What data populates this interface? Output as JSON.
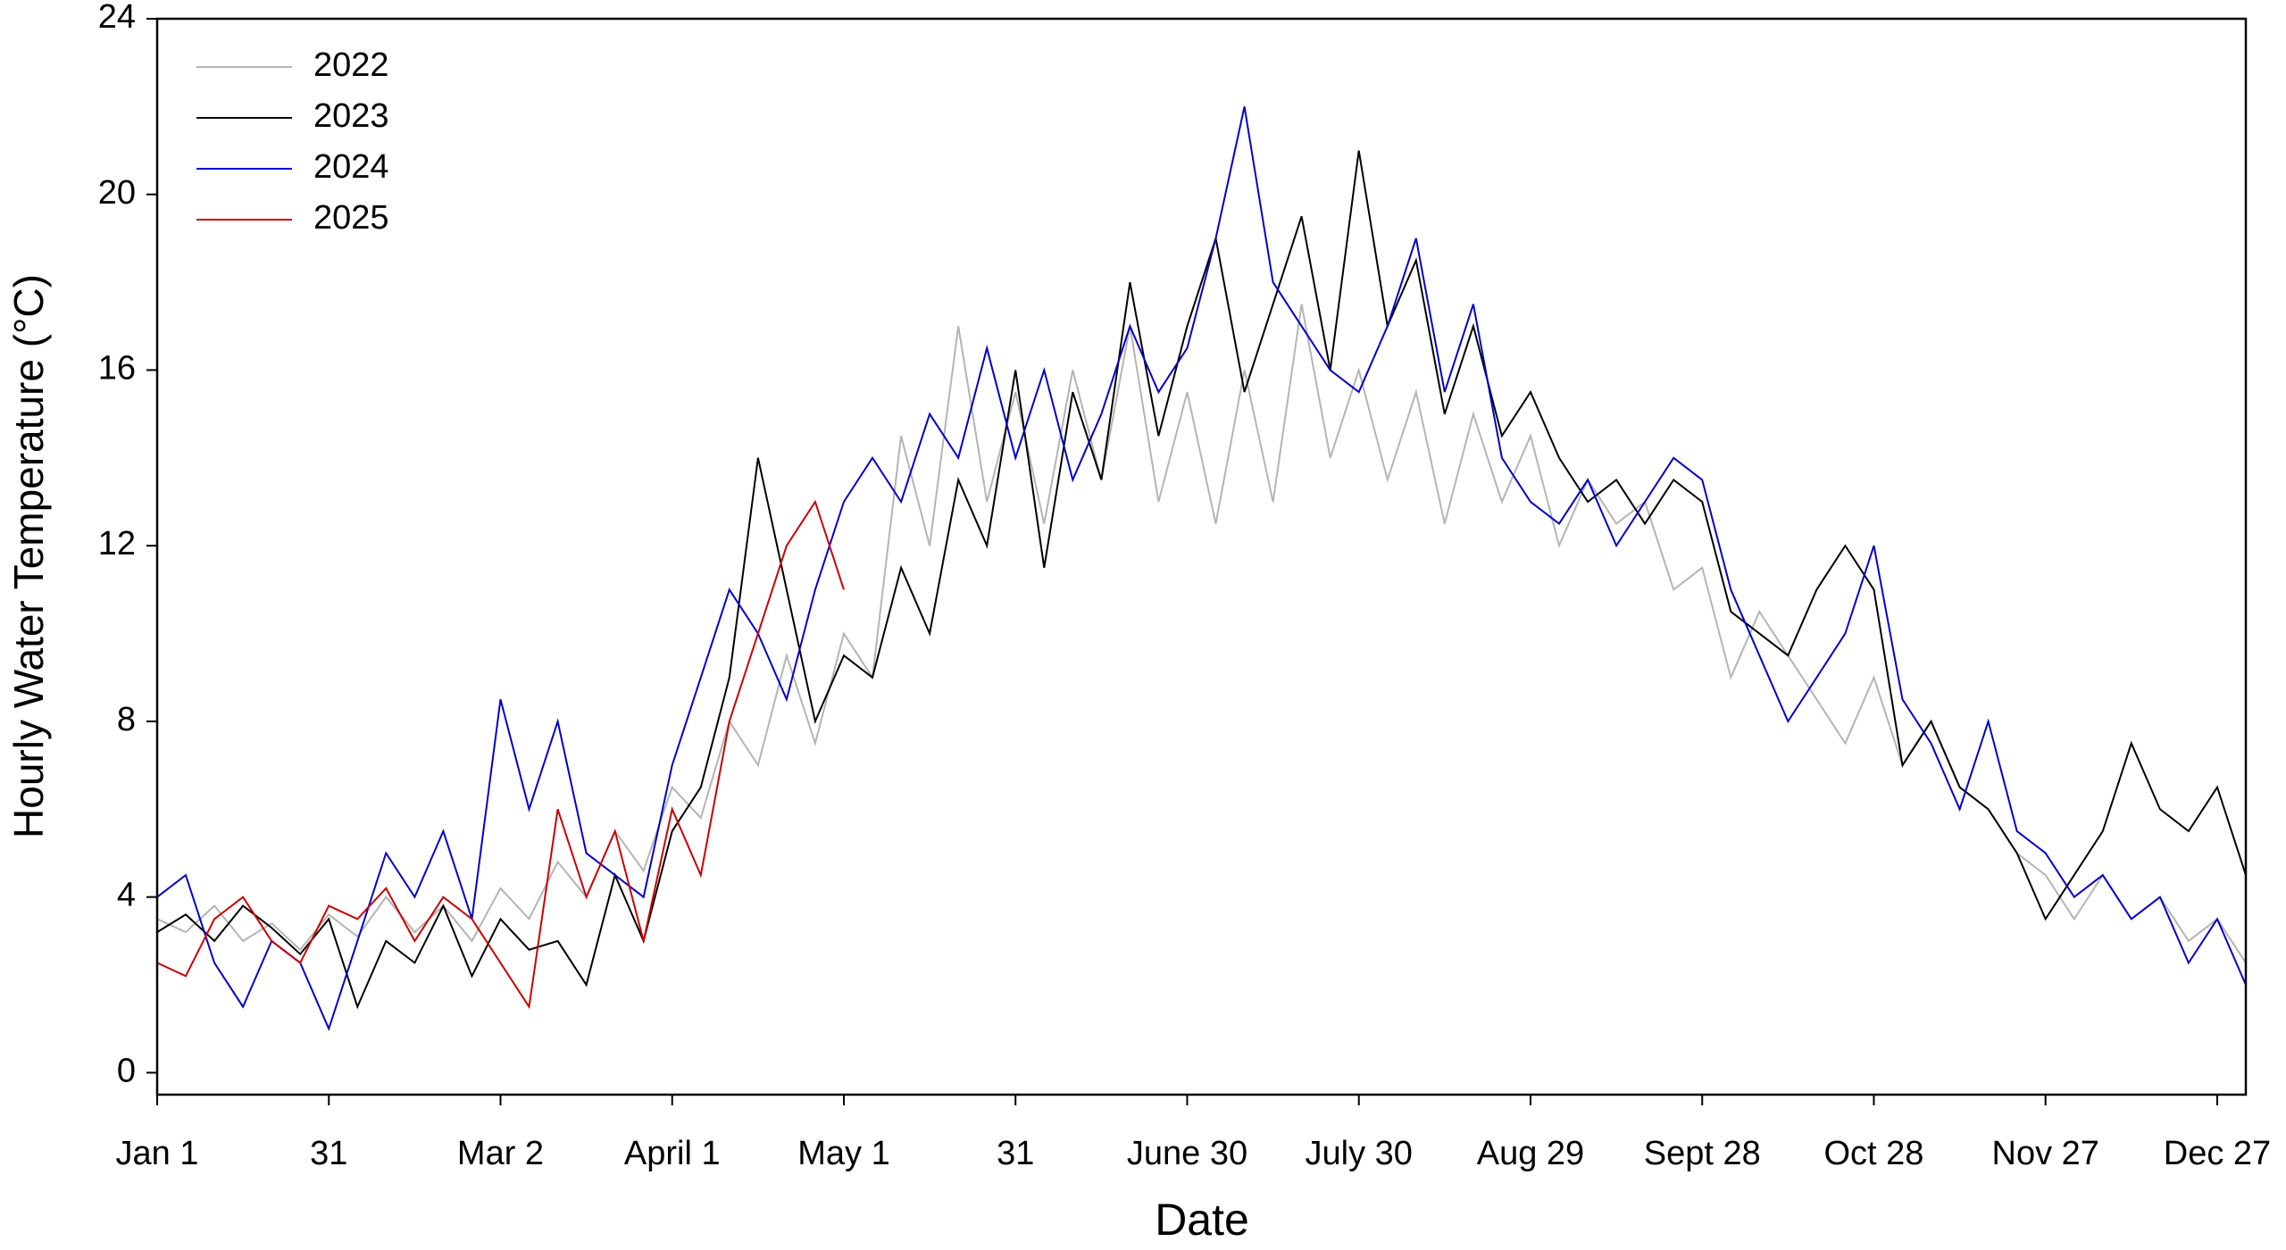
{
  "chart_data": {
    "type": "line",
    "x_label": "Date",
    "y_label": "Hourly Water Temperature (°C)",
    "x": [
      1,
      6,
      11,
      16,
      21,
      26,
      31,
      36,
      41,
      46,
      51,
      56,
      61,
      66,
      71,
      76,
      81,
      86,
      91,
      96,
      101,
      106,
      111,
      116,
      121,
      126,
      131,
      136,
      141,
      146,
      151,
      156,
      161,
      166,
      171,
      176,
      181,
      186,
      191,
      196,
      201,
      206,
      211,
      216,
      221,
      226,
      231,
      236,
      241,
      246,
      251,
      256,
      261,
      266,
      271,
      276,
      281,
      286,
      291,
      296,
      301,
      306,
      311,
      316,
      321,
      326,
      331,
      336,
      341,
      346,
      351,
      356,
      361,
      366
    ],
    "series": [
      {
        "name": "2022",
        "color": "#b4b4b4",
        "values": [
          3.5,
          3.2,
          3.8,
          3.0,
          3.4,
          2.8,
          3.6,
          3.1,
          4.0,
          3.2,
          3.8,
          3.0,
          4.2,
          3.5,
          4.8,
          4.0,
          5.5,
          4.6,
          6.5,
          5.8,
          8.0,
          7.0,
          9.5,
          7.5,
          10.0,
          9.0,
          14.5,
          12.0,
          17.0,
          13.0,
          15.5,
          12.5,
          16.0,
          13.5,
          17.0,
          13.0,
          15.5,
          12.5,
          16.0,
          13.0,
          17.5,
          14.0,
          16.0,
          13.5,
          15.5,
          12.5,
          15.0,
          13.0,
          14.5,
          12.0,
          13.5,
          12.5,
          13.0,
          11.0,
          11.5,
          9.0,
          10.5,
          9.5,
          8.5,
          7.5,
          9.0,
          7.0,
          8.0,
          6.5,
          6.0,
          5.0,
          4.5,
          3.5,
          4.5,
          3.5,
          4.0,
          3.0,
          3.5,
          2.5
        ]
      },
      {
        "name": "2023",
        "color": "#000000",
        "values": [
          3.2,
          3.6,
          3.0,
          3.8,
          3.3,
          2.7,
          3.5,
          1.5,
          3.0,
          2.5,
          3.8,
          2.2,
          3.5,
          2.8,
          3.0,
          2.0,
          4.5,
          3.0,
          5.5,
          6.5,
          9.0,
          14.0,
          11.0,
          8.0,
          9.5,
          9.0,
          11.5,
          10.0,
          13.5,
          12.0,
          16.0,
          11.5,
          15.5,
          13.5,
          18.0,
          14.5,
          17.0,
          19.0,
          15.5,
          17.5,
          19.5,
          16.0,
          21.0,
          17.0,
          18.5,
          15.0,
          17.0,
          14.5,
          15.5,
          14.0,
          13.0,
          13.5,
          12.5,
          13.5,
          13.0,
          10.5,
          10.0,
          9.5,
          11.0,
          12.0,
          11.0,
          7.0,
          8.0,
          6.5,
          6.0,
          5.0,
          3.5,
          4.5,
          5.5,
          7.5,
          6.0,
          5.5,
          6.5,
          4.5
        ]
      },
      {
        "name": "2024",
        "color": "#0000cc",
        "values": [
          4.0,
          4.5,
          2.5,
          1.5,
          3.0,
          2.5,
          1.0,
          3.0,
          5.0,
          4.0,
          5.5,
          3.5,
          8.5,
          6.0,
          8.0,
          5.0,
          4.5,
          4.0,
          7.0,
          9.0,
          11.0,
          10.0,
          8.5,
          11.0,
          13.0,
          14.0,
          13.0,
          15.0,
          14.0,
          16.5,
          14.0,
          16.0,
          13.5,
          15.0,
          17.0,
          15.5,
          16.5,
          19.0,
          22.0,
          18.0,
          17.0,
          16.0,
          15.5,
          17.0,
          19.0,
          15.5,
          17.5,
          14.0,
          13.0,
          12.5,
          13.5,
          12.0,
          13.0,
          14.0,
          13.5,
          11.0,
          9.5,
          8.0,
          9.0,
          10.0,
          12.0,
          8.5,
          7.5,
          6.0,
          8.0,
          5.5,
          5.0,
          4.0,
          4.5,
          3.5,
          4.0,
          2.5,
          3.5,
          2.0
        ]
      },
      {
        "name": "2025",
        "color": "#cc0000",
        "values": [
          2.5,
          2.2,
          3.5,
          4.0,
          3.0,
          2.5,
          3.8,
          3.5,
          4.2,
          3.0,
          4.0,
          3.5,
          2.5,
          1.5,
          6.0,
          4.0,
          5.5,
          3.0,
          6.0,
          4.5,
          8.0,
          10.0,
          12.0,
          13.0,
          11.0,
          null,
          null,
          null,
          null,
          null,
          null,
          null,
          null,
          null,
          null,
          null,
          null,
          null,
          null,
          null,
          null,
          null,
          null,
          null,
          null,
          null,
          null,
          null,
          null,
          null,
          null,
          null,
          null,
          null,
          null,
          null,
          null,
          null,
          null,
          null,
          null,
          null,
          null,
          null,
          null,
          null,
          null,
          null,
          null,
          null,
          null,
          null,
          null,
          null
        ]
      }
    ],
    "xlim": [
      1,
      366
    ],
    "xticks": [
      {
        "value": 1,
        "label": "Jan 1"
      },
      31,
      {
        "value": 61,
        "label": "Mar 2"
      },
      {
        "value": 91,
        "label": "April 1"
      },
      {
        "value": 121,
        "label": "May 1"
      },
      {
        "value": 151,
        "label": "31"
      },
      {
        "value": 181,
        "label": "June 30"
      },
      {
        "value": 211,
        "label": "July 30"
      },
      {
        "value": 241,
        "label": "Aug 29"
      },
      {
        "value": 271,
        "label": "Sept 28"
      },
      {
        "value": 301,
        "label": "Oct 28"
      },
      {
        "value": 331,
        "label": "Nov 27"
      },
      {
        "value": 361,
        "label": "Dec 27"
      }
    ],
    "ylim": [
      -0.5,
      24
    ],
    "yticks": [
      0,
      4,
      8,
      12,
      16,
      20,
      24
    ],
    "legend": "upper-left"
  }
}
